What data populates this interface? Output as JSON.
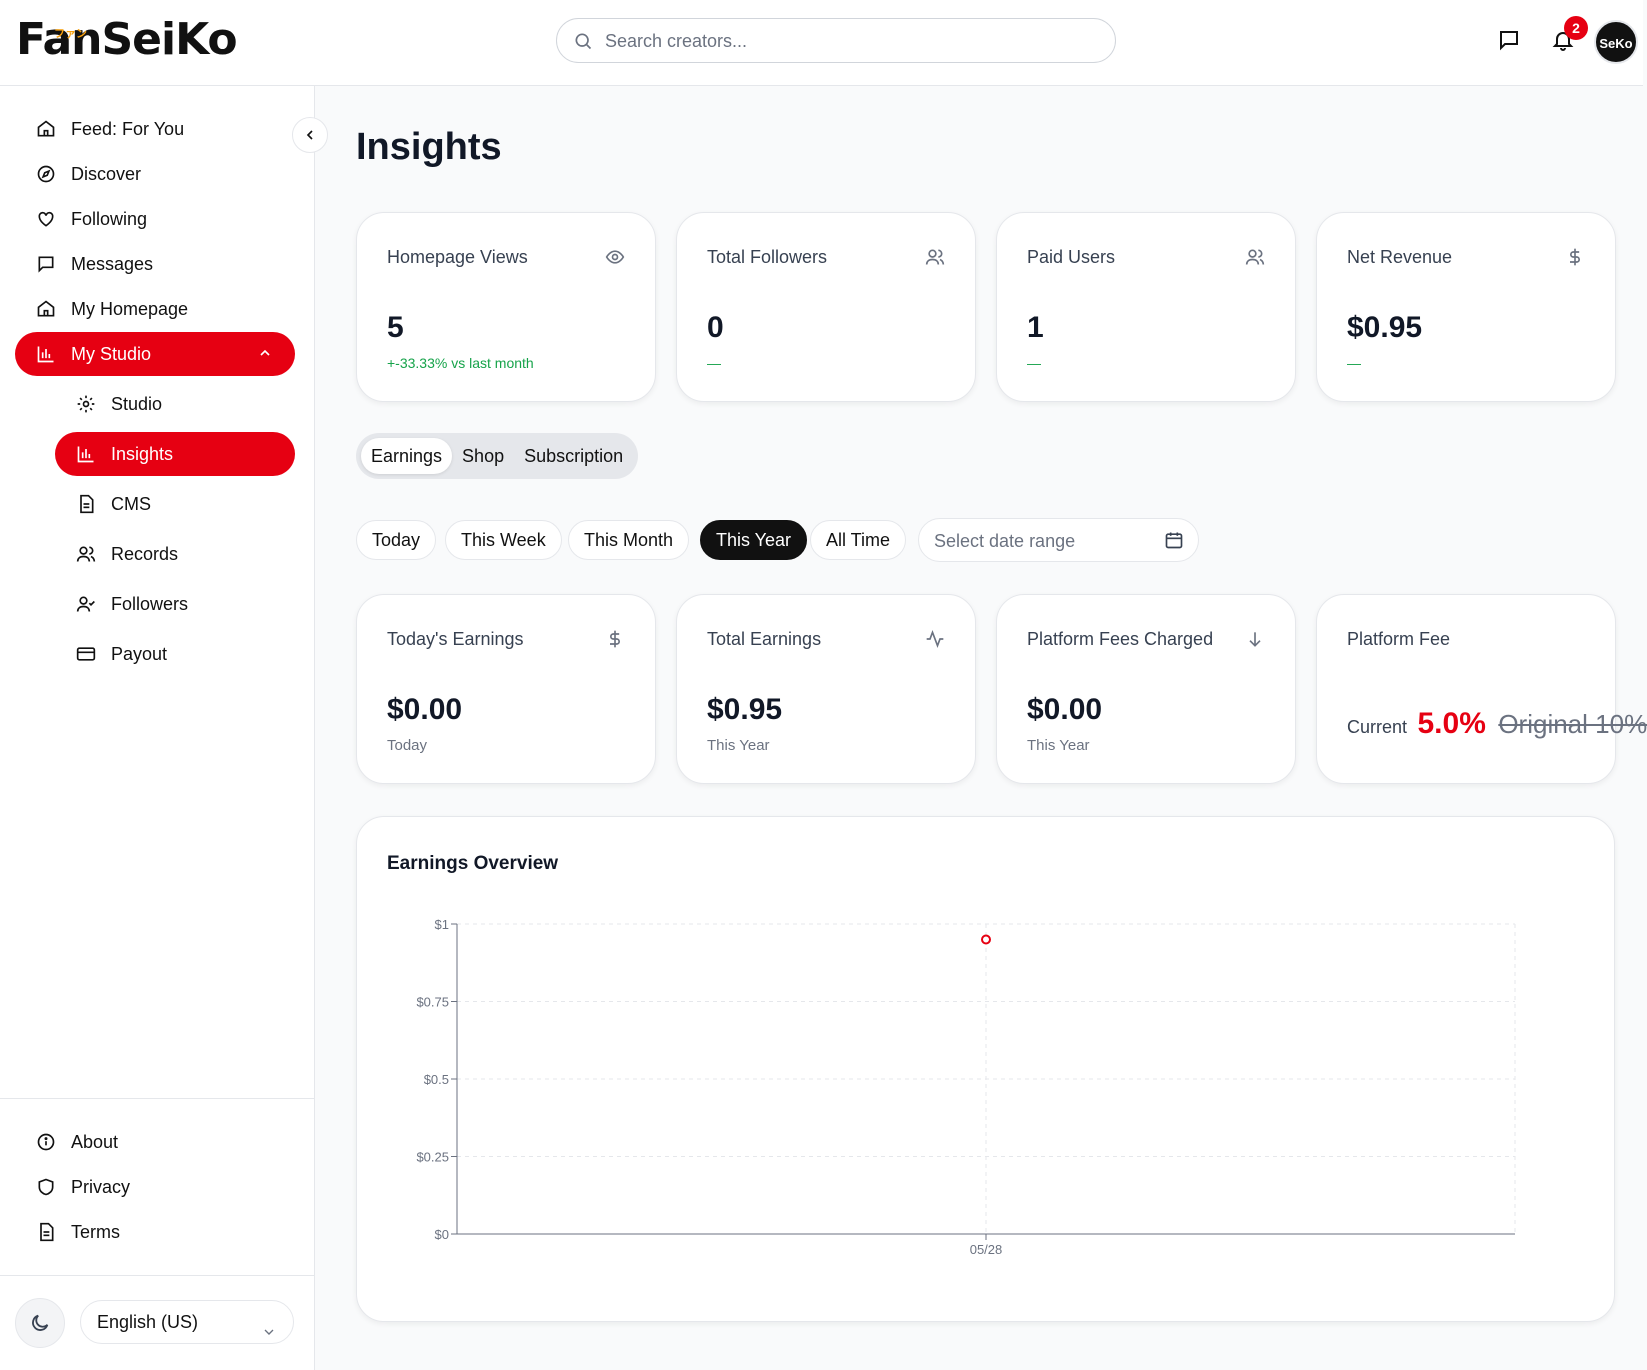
{
  "brand": {
    "logo_text": "FanSeiKo",
    "logo_kana": "ファン"
  },
  "header": {
    "search_placeholder": "Search creators...",
    "notification_count": "2",
    "avatar_text": "SeKo"
  },
  "sidebar": {
    "items": [
      {
        "label": "Feed: For You",
        "icon": "home-icon"
      },
      {
        "label": "Discover",
        "icon": "compass-icon"
      },
      {
        "label": "Following",
        "icon": "heart-icon"
      },
      {
        "label": "Messages",
        "icon": "message-icon"
      },
      {
        "label": "My Homepage",
        "icon": "home-icon"
      },
      {
        "label": "My Studio",
        "icon": "bar-chart-icon"
      }
    ],
    "studio_items": [
      {
        "label": "Studio",
        "icon": "gear-icon"
      },
      {
        "label": "Insights",
        "icon": "bar-chart-icon"
      },
      {
        "label": "CMS",
        "icon": "document-icon"
      },
      {
        "label": "Records",
        "icon": "users-icon"
      },
      {
        "label": "Followers",
        "icon": "user-check-icon"
      },
      {
        "label": "Payout",
        "icon": "credit-card-icon"
      }
    ],
    "footer_items": [
      {
        "label": "About",
        "icon": "info-icon"
      },
      {
        "label": "Privacy",
        "icon": "shield-icon"
      },
      {
        "label": "Terms",
        "icon": "document-icon"
      }
    ],
    "language": "English (US)"
  },
  "main": {
    "title": "Insights",
    "stats": [
      {
        "label": "Homepage Views",
        "value": "5",
        "delta": "+-33.33% vs last month"
      },
      {
        "label": "Total Followers",
        "value": "0",
        "delta": "—"
      },
      {
        "label": "Paid Users",
        "value": "1",
        "delta": "—"
      },
      {
        "label": "Net Revenue",
        "value": "$0.95",
        "delta": "—"
      }
    ],
    "tabs": [
      "Earnings",
      "Shop",
      "Subscription"
    ],
    "active_tab": "Earnings",
    "periods": [
      "Today",
      "This Week",
      "This Month",
      "This Year",
      "All Time"
    ],
    "active_period": "This Year",
    "date_range_placeholder": "Select date range",
    "earnings": [
      {
        "label": "Today's Earnings",
        "value": "$0.00",
        "sub": "Today"
      },
      {
        "label": "Total Earnings",
        "value": "$0.95",
        "sub": "This Year"
      },
      {
        "label": "Platform Fees Charged",
        "value": "$0.00",
        "sub": "This Year"
      }
    ],
    "platform_fee": {
      "label": "Platform Fee",
      "current_label": "Current",
      "current": "5.0%",
      "original": "Original 10%"
    }
  },
  "colors": {
    "accent": "#e60012",
    "positive": "#16a34a"
  },
  "chart_data": {
    "type": "line",
    "title": "Earnings Overview",
    "x": [
      "05/28"
    ],
    "series": [
      {
        "values": [
          0.95
        ]
      }
    ],
    "y_ticks": [
      "$0",
      "$0.25",
      "$0.5",
      "$0.75",
      "$1"
    ],
    "ylim": [
      0,
      1
    ],
    "grid": true
  }
}
